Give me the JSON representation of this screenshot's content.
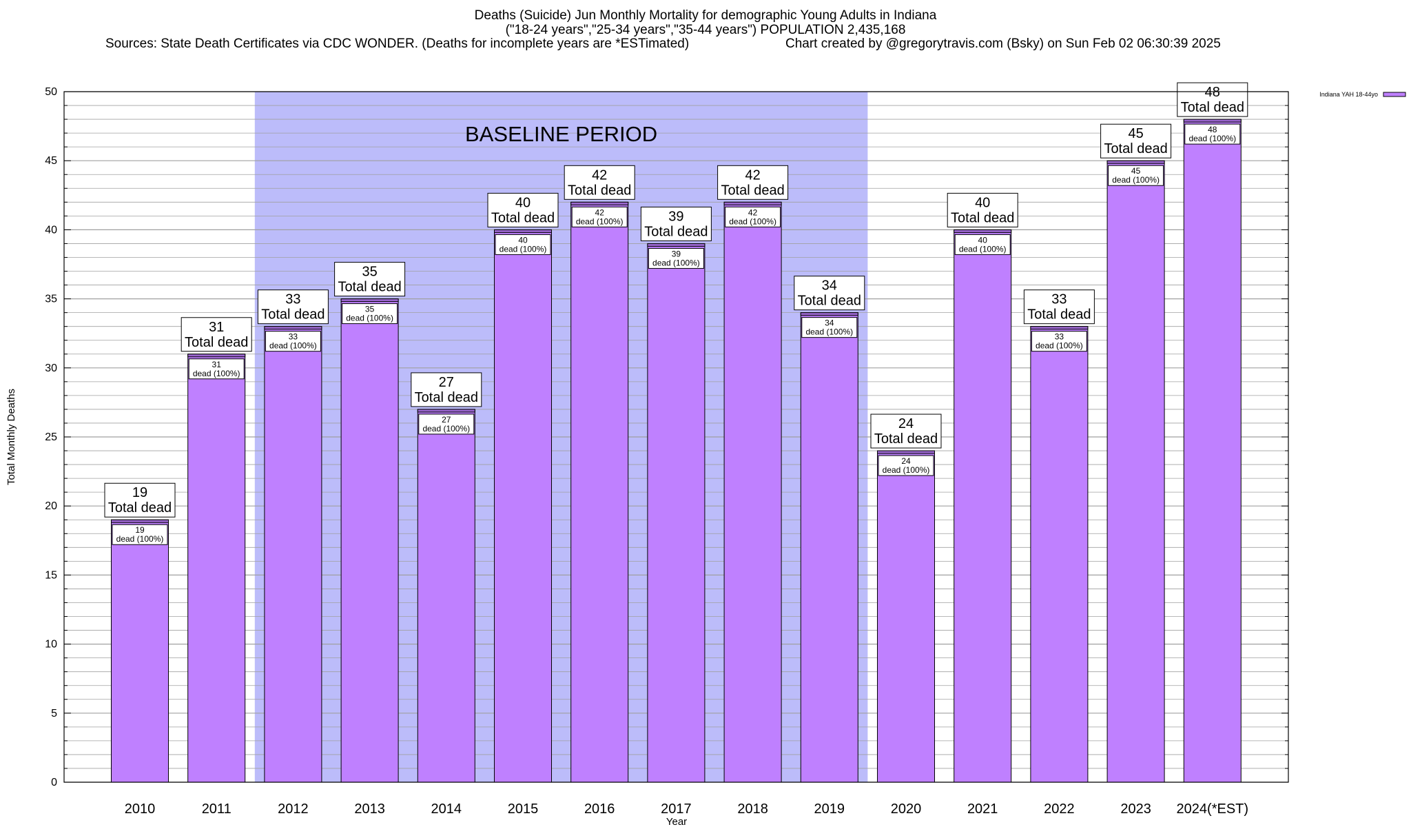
{
  "header": {
    "title": "Deaths (Suicide) Jun Monthly Mortality for demographic Young Adults in Indiana",
    "subtitle": "(\"18-24 years\",\"25-34 years\",\"35-44 years\") POPULATION 2,435,168",
    "sources": "Sources: State Death Certificates via CDC WONDER. (Deaths for incomplete years are *ESTimated)",
    "credit": "Chart created by @gregorytravis.com (Bsky) on Sun Feb 02 06:30:39 2025"
  },
  "chart_data": {
    "type": "bar",
    "categories": [
      "2010",
      "2011",
      "2012",
      "2013",
      "2014",
      "2015",
      "2016",
      "2017",
      "2018",
      "2019",
      "2020",
      "2021",
      "2022",
      "2023",
      "2024(*EST)"
    ],
    "series": [
      {
        "name": "Indiana YAH 18-44yo",
        "values": [
          19,
          31,
          33,
          35,
          27,
          40,
          42,
          39,
          42,
          34,
          24,
          40,
          33,
          45,
          48
        ]
      }
    ],
    "inner_labels": [
      {
        "value": "19",
        "pct": "dead (100%)"
      },
      {
        "value": "31",
        "pct": "dead (100%)"
      },
      {
        "value": "33",
        "pct": "dead (100%)"
      },
      {
        "value": "35",
        "pct": "dead (100%)"
      },
      {
        "value": "27",
        "pct": "dead (100%)"
      },
      {
        "value": "40",
        "pct": "dead (100%)"
      },
      {
        "value": "42",
        "pct": "dead (100%)"
      },
      {
        "value": "39",
        "pct": "dead (100%)"
      },
      {
        "value": "42",
        "pct": "dead (100%)"
      },
      {
        "value": "34",
        "pct": "dead (100%)"
      },
      {
        "value": "24",
        "pct": "dead (100%)"
      },
      {
        "value": "40",
        "pct": "dead (100%)"
      },
      {
        "value": "33",
        "pct": "dead (100%)"
      },
      {
        "value": "45",
        "pct": "dead (100%)"
      },
      {
        "value": "48",
        "pct": "dead (100%)"
      }
    ],
    "total_label_text": "Total dead",
    "xlabel": "Year",
    "ylabel": "Total Monthly Deaths",
    "ylim": [
      0,
      50
    ],
    "yticks": [
      0,
      5,
      10,
      15,
      20,
      25,
      30,
      35,
      40,
      45,
      50
    ],
    "minor_tick_step": 1,
    "grid": true,
    "legend_placement": "top-right",
    "baseline_period": {
      "label": "BASELINE PERIOD",
      "from": "2012",
      "to": "2019"
    },
    "colors": {
      "bar_fill": "#bf80ff",
      "bar_top": "#9966cc",
      "baseline_shade": "#bcbcfa",
      "grid": "#a0a0a0"
    }
  }
}
